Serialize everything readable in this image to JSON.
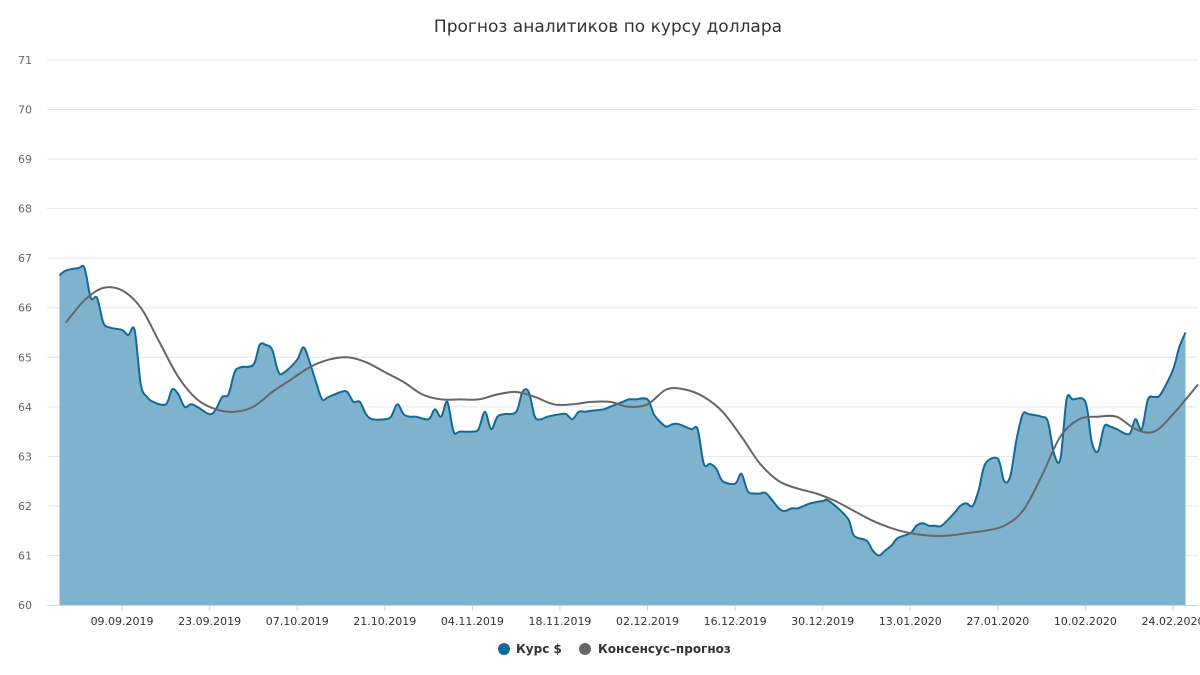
{
  "chart_data": {
    "type": "area",
    "title": "Прогноз аналитиков по курсу доллара",
    "xlabel": "",
    "ylabel": "",
    "ylim": [
      60,
      71
    ],
    "y_ticks": [
      "60",
      "61",
      "62",
      "63",
      "64",
      "65",
      "66",
      "67",
      "68",
      "69",
      "70",
      "71"
    ],
    "x_range": [
      "2019-08-28",
      "2020-02-28"
    ],
    "x_ticks": [
      {
        "date": "2019-09-09",
        "label": "09.09.2019"
      },
      {
        "date": "2019-09-23",
        "label": "23.09.2019"
      },
      {
        "date": "2019-10-07",
        "label": "07.10.2019"
      },
      {
        "date": "2019-10-21",
        "label": "21.10.2019"
      },
      {
        "date": "2019-11-04",
        "label": "04.11.2019"
      },
      {
        "date": "2019-11-18",
        "label": "18.11.2019"
      },
      {
        "date": "2019-12-02",
        "label": "02.12.2019"
      },
      {
        "date": "2019-12-16",
        "label": "16.12.2019"
      },
      {
        "date": "2019-12-30",
        "label": "30.12.2019"
      },
      {
        "date": "2020-01-13",
        "label": "13.01.2020"
      },
      {
        "date": "2020-01-27",
        "label": "27.01.2020"
      },
      {
        "date": "2020-02-10",
        "label": "10.02.2020"
      },
      {
        "date": "2020-02-24",
        "label": "24.02.2020"
      }
    ],
    "grid": true,
    "legend_position": "bottom-center",
    "series": [
      {
        "name": "Курс $",
        "kind": "area",
        "color": "#0f6a9a",
        "fill": "#7fb2cd",
        "points": [
          [
            "2019-08-30",
            66.65
          ],
          [
            "2019-08-31",
            66.75
          ],
          [
            "2019-09-02",
            66.8
          ],
          [
            "2019-09-03",
            66.8
          ],
          [
            "2019-09-04",
            66.2
          ],
          [
            "2019-09-05",
            66.2
          ],
          [
            "2019-09-06",
            65.7
          ],
          [
            "2019-09-07",
            65.6
          ],
          [
            "2019-09-09",
            65.55
          ],
          [
            "2019-09-10",
            65.45
          ],
          [
            "2019-09-11",
            65.55
          ],
          [
            "2019-09-12",
            64.45
          ],
          [
            "2019-09-13",
            64.2
          ],
          [
            "2019-09-14",
            64.1
          ],
          [
            "2019-09-16",
            64.05
          ],
          [
            "2019-09-17",
            64.35
          ],
          [
            "2019-09-18",
            64.25
          ],
          [
            "2019-09-19",
            64.0
          ],
          [
            "2019-09-20",
            64.05
          ],
          [
            "2019-09-21",
            64.0
          ],
          [
            "2019-09-23",
            63.85
          ],
          [
            "2019-09-24",
            63.95
          ],
          [
            "2019-09-25",
            64.2
          ],
          [
            "2019-09-26",
            64.25
          ],
          [
            "2019-09-27",
            64.7
          ],
          [
            "2019-09-28",
            64.8
          ],
          [
            "2019-09-30",
            64.85
          ],
          [
            "2019-10-01",
            65.25
          ],
          [
            "2019-10-02",
            65.25
          ],
          [
            "2019-10-03",
            65.15
          ],
          [
            "2019-10-04",
            64.7
          ],
          [
            "2019-10-05",
            64.7
          ],
          [
            "2019-10-07",
            64.95
          ],
          [
            "2019-10-08",
            65.2
          ],
          [
            "2019-10-09",
            64.9
          ],
          [
            "2019-10-10",
            64.5
          ],
          [
            "2019-10-11",
            64.15
          ],
          [
            "2019-10-12",
            64.2
          ],
          [
            "2019-10-14",
            64.3
          ],
          [
            "2019-10-15",
            64.3
          ],
          [
            "2019-10-16",
            64.1
          ],
          [
            "2019-10-17",
            64.1
          ],
          [
            "2019-10-18",
            63.85
          ],
          [
            "2019-10-19",
            63.75
          ],
          [
            "2019-10-21",
            63.75
          ],
          [
            "2019-10-22",
            63.8
          ],
          [
            "2019-10-23",
            64.05
          ],
          [
            "2019-10-24",
            63.85
          ],
          [
            "2019-10-25",
            63.8
          ],
          [
            "2019-10-26",
            63.8
          ],
          [
            "2019-10-28",
            63.75
          ],
          [
            "2019-10-29",
            63.95
          ],
          [
            "2019-10-30",
            63.8
          ],
          [
            "2019-10-31",
            64.1
          ],
          [
            "2019-11-01",
            63.5
          ],
          [
            "2019-11-02",
            63.5
          ],
          [
            "2019-11-04",
            63.5
          ],
          [
            "2019-11-05",
            63.55
          ],
          [
            "2019-11-06",
            63.9
          ],
          [
            "2019-11-07",
            63.55
          ],
          [
            "2019-11-08",
            63.8
          ],
          [
            "2019-11-09",
            63.85
          ],
          [
            "2019-11-11",
            63.9
          ],
          [
            "2019-11-12",
            64.3
          ],
          [
            "2019-11-13",
            64.3
          ],
          [
            "2019-11-14",
            63.8
          ],
          [
            "2019-11-15",
            63.75
          ],
          [
            "2019-11-16",
            63.8
          ],
          [
            "2019-11-18",
            63.85
          ],
          [
            "2019-11-19",
            63.85
          ],
          [
            "2019-11-20",
            63.75
          ],
          [
            "2019-11-21",
            63.9
          ],
          [
            "2019-11-22",
            63.9
          ],
          [
            "2019-11-23",
            63.92
          ],
          [
            "2019-11-25",
            63.95
          ],
          [
            "2019-11-26",
            64.0
          ],
          [
            "2019-11-27",
            64.05
          ],
          [
            "2019-11-28",
            64.1
          ],
          [
            "2019-11-29",
            64.15
          ],
          [
            "2019-11-30",
            64.15
          ],
          [
            "2019-12-02",
            64.15
          ],
          [
            "2019-12-03",
            63.85
          ],
          [
            "2019-12-04",
            63.7
          ],
          [
            "2019-12-05",
            63.6
          ],
          [
            "2019-12-06",
            63.65
          ],
          [
            "2019-12-07",
            63.65
          ],
          [
            "2019-12-09",
            63.55
          ],
          [
            "2019-12-10",
            63.55
          ],
          [
            "2019-12-11",
            62.85
          ],
          [
            "2019-12-12",
            62.85
          ],
          [
            "2019-12-13",
            62.75
          ],
          [
            "2019-12-14",
            62.5
          ],
          [
            "2019-12-16",
            62.45
          ],
          [
            "2019-12-17",
            62.65
          ],
          [
            "2019-12-18",
            62.3
          ],
          [
            "2019-12-19",
            62.25
          ],
          [
            "2019-12-20",
            62.25
          ],
          [
            "2019-12-21",
            62.25
          ],
          [
            "2019-12-23",
            61.95
          ],
          [
            "2019-12-24",
            61.9
          ],
          [
            "2019-12-25",
            61.95
          ],
          [
            "2019-12-26",
            61.95
          ],
          [
            "2019-12-27",
            62.0
          ],
          [
            "2019-12-28",
            62.05
          ],
          [
            "2019-12-30",
            62.1
          ],
          [
            "2019-12-31",
            62.1
          ],
          [
            "2020-01-03",
            61.75
          ],
          [
            "2020-01-04",
            61.4
          ],
          [
            "2020-01-06",
            61.3
          ],
          [
            "2020-01-07",
            61.1
          ],
          [
            "2020-01-08",
            61.0
          ],
          [
            "2020-01-09",
            61.1
          ],
          [
            "2020-01-10",
            61.2
          ],
          [
            "2020-01-11",
            61.35
          ],
          [
            "2020-01-13",
            61.45
          ],
          [
            "2020-01-14",
            61.6
          ],
          [
            "2020-01-15",
            61.65
          ],
          [
            "2020-01-16",
            61.6
          ],
          [
            "2020-01-17",
            61.6
          ],
          [
            "2020-01-18",
            61.6
          ],
          [
            "2020-01-20",
            61.85
          ],
          [
            "2020-01-21",
            62.0
          ],
          [
            "2020-01-22",
            62.05
          ],
          [
            "2020-01-23",
            62.0
          ],
          [
            "2020-01-24",
            62.35
          ],
          [
            "2020-01-25",
            62.85
          ],
          [
            "2020-01-27",
            62.95
          ],
          [
            "2020-01-28",
            62.5
          ],
          [
            "2020-01-29",
            62.6
          ],
          [
            "2020-01-30",
            63.35
          ],
          [
            "2020-01-31",
            63.85
          ],
          [
            "2020-02-01",
            63.85
          ],
          [
            "2020-02-03",
            63.8
          ],
          [
            "2020-02-04",
            63.7
          ],
          [
            "2020-02-05",
            63.05
          ],
          [
            "2020-02-06",
            62.95
          ],
          [
            "2020-02-07",
            64.15
          ],
          [
            "2020-02-08",
            64.15
          ],
          [
            "2020-02-10",
            64.1
          ],
          [
            "2020-02-11",
            63.3
          ],
          [
            "2020-02-12",
            63.1
          ],
          [
            "2020-02-13",
            63.6
          ],
          [
            "2020-02-14",
            63.6
          ],
          [
            "2020-02-15",
            63.55
          ],
          [
            "2020-02-17",
            63.45
          ],
          [
            "2020-02-18",
            63.75
          ],
          [
            "2020-02-19",
            63.55
          ],
          [
            "2020-02-20",
            64.15
          ],
          [
            "2020-02-21",
            64.2
          ],
          [
            "2020-02-22",
            64.25
          ],
          [
            "2020-02-24",
            64.75
          ],
          [
            "2020-02-25",
            65.2
          ],
          [
            "2020-02-26",
            65.5
          ]
        ]
      },
      {
        "name": "Консенсус–прогноз",
        "kind": "line",
        "color": "#666666",
        "points": [
          [
            "2019-08-31",
            65.7
          ],
          [
            "2019-09-03",
            66.15
          ],
          [
            "2019-09-06",
            66.4
          ],
          [
            "2019-09-09",
            66.35
          ],
          [
            "2019-09-12",
            66.0
          ],
          [
            "2019-09-15",
            65.3
          ],
          [
            "2019-09-18",
            64.6
          ],
          [
            "2019-09-21",
            64.15
          ],
          [
            "2019-09-24",
            63.95
          ],
          [
            "2019-09-27",
            63.9
          ],
          [
            "2019-09-30",
            64.0
          ],
          [
            "2019-10-03",
            64.3
          ],
          [
            "2019-10-06",
            64.55
          ],
          [
            "2019-10-09",
            64.8
          ],
          [
            "2019-10-12",
            64.95
          ],
          [
            "2019-10-15",
            65.0
          ],
          [
            "2019-10-18",
            64.9
          ],
          [
            "2019-10-21",
            64.7
          ],
          [
            "2019-10-24",
            64.5
          ],
          [
            "2019-10-27",
            64.25
          ],
          [
            "2019-10-30",
            64.15
          ],
          [
            "2019-11-02",
            64.15
          ],
          [
            "2019-11-05",
            64.15
          ],
          [
            "2019-11-08",
            64.25
          ],
          [
            "2019-11-11",
            64.3
          ],
          [
            "2019-11-14",
            64.2
          ],
          [
            "2019-11-17",
            64.05
          ],
          [
            "2019-11-20",
            64.05
          ],
          [
            "2019-11-23",
            64.1
          ],
          [
            "2019-11-26",
            64.1
          ],
          [
            "2019-11-29",
            64.0
          ],
          [
            "2019-12-02",
            64.05
          ],
          [
            "2019-12-05",
            64.35
          ],
          [
            "2019-12-08",
            64.35
          ],
          [
            "2019-12-11",
            64.2
          ],
          [
            "2019-12-14",
            63.9
          ],
          [
            "2019-12-17",
            63.4
          ],
          [
            "2019-12-20",
            62.85
          ],
          [
            "2019-12-23",
            62.5
          ],
          [
            "2019-12-26",
            62.35
          ],
          [
            "2019-12-29",
            62.25
          ],
          [
            "2020-01-01",
            62.1
          ],
          [
            "2020-01-04",
            61.9
          ],
          [
            "2020-01-07",
            61.7
          ],
          [
            "2020-01-10",
            61.55
          ],
          [
            "2020-01-13",
            61.45
          ],
          [
            "2020-01-16",
            61.4
          ],
          [
            "2020-01-19",
            61.4
          ],
          [
            "2020-01-22",
            61.45
          ],
          [
            "2020-01-25",
            61.5
          ],
          [
            "2020-01-28",
            61.6
          ],
          [
            "2020-01-31",
            61.9
          ],
          [
            "2020-02-03",
            62.6
          ],
          [
            "2020-02-06",
            63.4
          ],
          [
            "2020-02-09",
            63.75
          ],
          [
            "2020-02-12",
            63.8
          ],
          [
            "2020-02-15",
            63.8
          ],
          [
            "2020-02-18",
            63.55
          ],
          [
            "2020-02-21",
            63.5
          ],
          [
            "2020-02-24",
            63.85
          ],
          [
            "2020-02-28",
            64.45
          ]
        ]
      }
    ]
  }
}
